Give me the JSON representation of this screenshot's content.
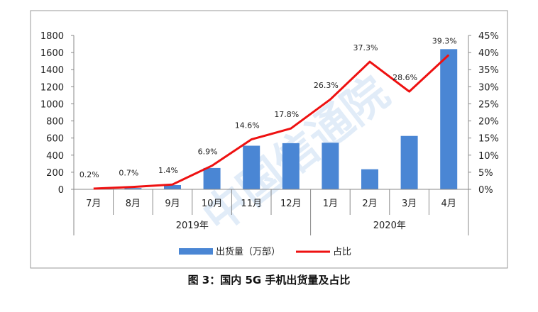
{
  "caption": "图 3：国内 5G 手机出货量及占比",
  "chart_data": {
    "type": "bar",
    "categories": [
      "7月",
      "8月",
      "9月",
      "10月",
      "11月",
      "12月",
      "1月",
      "2月",
      "3月",
      "4月"
    ],
    "year_groups": [
      {
        "label": "2019年",
        "start": 0,
        "end": 5
      },
      {
        "label": "2020年",
        "start": 6,
        "end": 9
      }
    ],
    "series": [
      {
        "name": "出货量（万部）",
        "type": "bar",
        "axis": "left",
        "color": "#4a86d4",
        "values": [
          2,
          15,
          50,
          250,
          510,
          540,
          545,
          235,
          625,
          1640
        ]
      },
      {
        "name": "占比",
        "type": "line",
        "axis": "right",
        "color": "#ee1111",
        "values": [
          0.2,
          0.7,
          1.4,
          6.9,
          14.6,
          17.8,
          26.3,
          37.3,
          28.6,
          39.3
        ],
        "labels": [
          "0.2%",
          "0.7%",
          "1.4%",
          "6.9%",
          "14.6%",
          "17.8%",
          "26.3%",
          "37.3%",
          "28.6%",
          "39.3%"
        ]
      }
    ],
    "y_left": {
      "ylim": [
        0,
        1800
      ],
      "ticks": [
        0,
        200,
        400,
        600,
        800,
        1000,
        1200,
        1400,
        1600,
        1800
      ]
    },
    "y_right": {
      "ylim": [
        0,
        45
      ],
      "ticks": [
        "0%",
        "5%",
        "10%",
        "15%",
        "20%",
        "25%",
        "30%",
        "35%",
        "40%",
        "45%"
      ]
    },
    "grid": false,
    "legend": "bottom-center",
    "watermark": "中国信通院"
  }
}
